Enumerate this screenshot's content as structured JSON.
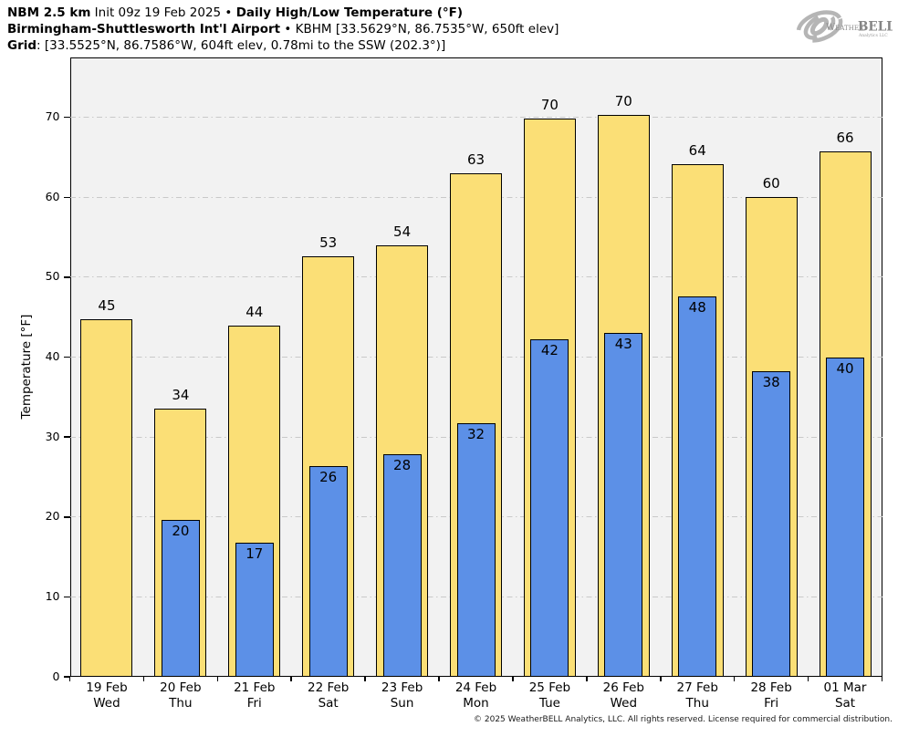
{
  "header": {
    "line1_model": "NBM 2.5 km",
    "line1_init": " Init 09z 19 Feb 2025 • ",
    "line1_product": "Daily High/Low Temperature (°F)",
    "line2_station": "Birmingham-Shuttlesworth Int'l Airport",
    "line2_meta": " • KBHM [33.5629°N, 86.7535°W, 650ft elev]",
    "line3_label": "Grid",
    "line3_meta": ": [33.5525°N, 86.7586°W, 604ft elev, 0.78mi to the SSW (202.3°)]"
  },
  "logo": {
    "weather": "Weather",
    "bell": "BELL",
    "subtext": "Analytics LLC"
  },
  "footer": {
    "copyright": "© 2025 WeatherBELL Analytics, LLC. All rights reserved. License required for commercial distribution."
  },
  "colors": {
    "bar_high": "#fbdf76",
    "bar_low": "#5c90e7",
    "bar_border": "#000000",
    "plot_bg": "#f2f2f2",
    "gridline": "#c9c9c9",
    "axis": "#000000"
  },
  "chart_data": {
    "type": "bar",
    "title": "Daily High/Low Temperature (°F)",
    "ylabel": "Temperature [°F]",
    "ylim": [
      0,
      77.5
    ],
    "yticks": [
      0,
      10,
      20,
      30,
      40,
      50,
      60,
      70
    ],
    "grid": "horizontal dash-dot gridlines at each 10°F",
    "legend": "none",
    "categories": [
      "19 Feb",
      "20 Feb",
      "21 Feb",
      "22 Feb",
      "23 Feb",
      "24 Feb",
      "25 Feb",
      "26 Feb",
      "27 Feb",
      "28 Feb",
      "01 Mar"
    ],
    "day_labels": [
      "Wed",
      "Thu",
      "Fri",
      "Sat",
      "Sun",
      "Mon",
      "Tue",
      "Wed",
      "Thu",
      "Fri",
      "Sat"
    ],
    "series": [
      {
        "name": "Daily High",
        "color": "#fbdf76",
        "bar_values": [
          44.7,
          33.5,
          44.0,
          52.6,
          54.0,
          63.0,
          69.9,
          70.3,
          64.1,
          60.0,
          65.7
        ],
        "labels": [
          "45",
          "34",
          "44",
          "53",
          "54",
          "63",
          "70",
          "70",
          "64",
          "60",
          "66"
        ]
      },
      {
        "name": "Daily Low",
        "color": "#5c90e7",
        "bar_values": [
          null,
          19.6,
          16.8,
          26.4,
          27.8,
          31.7,
          42.2,
          43.0,
          47.6,
          38.2,
          39.9
        ],
        "labels": [
          null,
          "20",
          "17",
          "26",
          "28",
          "32",
          "42",
          "43",
          "48",
          "38",
          "40"
        ]
      }
    ]
  }
}
